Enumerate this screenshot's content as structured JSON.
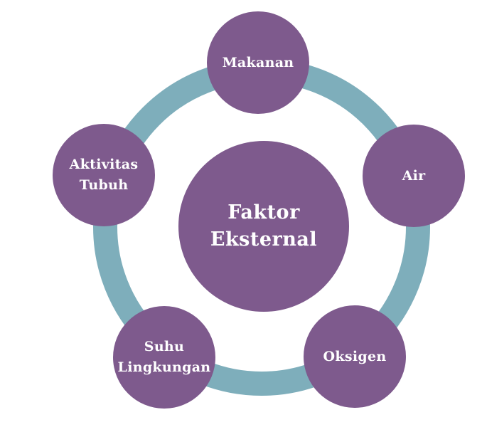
{
  "diagram": {
    "center": {
      "line1": "Faktor",
      "line2": "Eksternal"
    },
    "nodes": {
      "makanan": "Makanan",
      "air": "Air",
      "oksigen": "Oksigen",
      "suhu": {
        "line1": "Suhu",
        "line2": "Lingkungan"
      },
      "aktivitas": {
        "line1": "Aktivitas",
        "line2": "Tubuh"
      }
    }
  },
  "colors": {
    "circle_fill": "#7e5a8d",
    "ring": "#7eaebb",
    "text": "#ffffff",
    "background": "#ffffff"
  }
}
